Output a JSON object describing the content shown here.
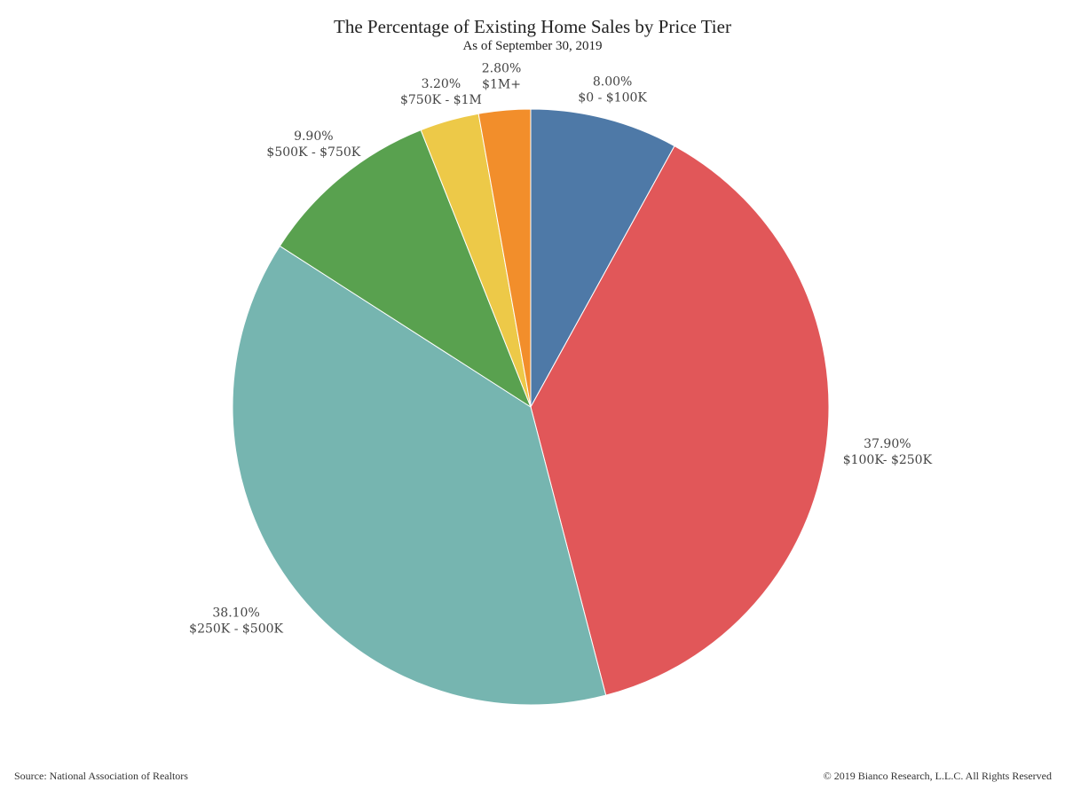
{
  "chart_data": {
    "type": "pie",
    "title": "The Percentage of Existing Home Sales by Price Tier",
    "subtitle": "As of September 30, 2019",
    "slices": [
      {
        "label": "$0 - $100K",
        "value": 8.0,
        "value_label": "8.00%",
        "color": "#4e79a7"
      },
      {
        "label": "$100K- $250K",
        "value": 37.9,
        "value_label": "37.90%",
        "color": "#e15759"
      },
      {
        "label": "$250K - $500K",
        "value": 38.1,
        "value_label": "38.10%",
        "color": "#76b5b0"
      },
      {
        "label": "$500K - $750K",
        "value": 9.9,
        "value_label": "9.90%",
        "color": "#59a14f"
      },
      {
        "label": "$750K - $1M",
        "value": 3.2,
        "value_label": "3.20%",
        "color": "#edc948"
      },
      {
        "label": "$1M+",
        "value": 2.8,
        "value_label": "2.80%",
        "color": "#f28e2b"
      }
    ]
  },
  "footer": {
    "source": "Source: National Association of Realtors",
    "copyright": "© 2019 Bianco Research, L.L.C. All Rights Reserved"
  }
}
